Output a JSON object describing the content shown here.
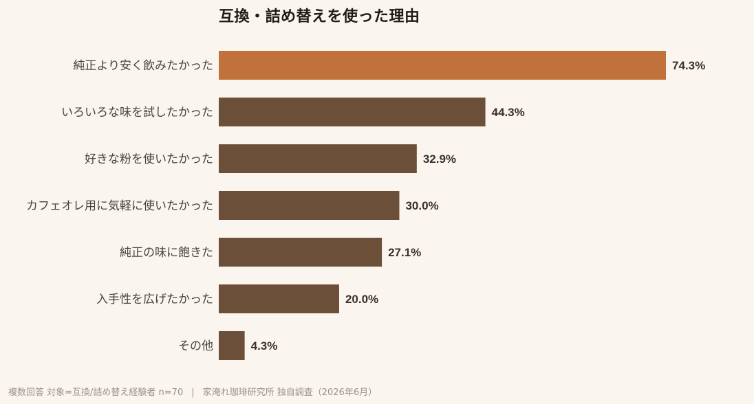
{
  "chart_data": {
    "type": "bar",
    "orientation": "horizontal",
    "title": "互換・詰め替えを使った理由",
    "categories": [
      "純正より安く飲みたかった",
      "いろいろな味を試したかった",
      "好きな粉を使いたかった",
      "カフェオレ用に気軽に使いたかった",
      "純正の味に飽きた",
      "入手性を広げたかった",
      "その他"
    ],
    "values": [
      74.3,
      44.3,
      32.9,
      30.0,
      27.1,
      20.0,
      4.3
    ],
    "value_labels": [
      "74.3%",
      "44.3%",
      "32.9%",
      "30.0%",
      "27.1%",
      "20.0%",
      "4.3%"
    ],
    "xlim": [
      0,
      100
    ],
    "xlabel": "",
    "ylabel": "",
    "grid": false,
    "highlight_index": 0,
    "colors": {
      "highlight": "#c1723c",
      "default": "#6b4f38",
      "background": "#faf5ef"
    }
  },
  "footnote": {
    "left": "複数回答 対象=互換/詰め替え経験者 n=70",
    "separator": "|",
    "right": "家淹れ珈琲研究所 独自調査（2026年6月）"
  }
}
